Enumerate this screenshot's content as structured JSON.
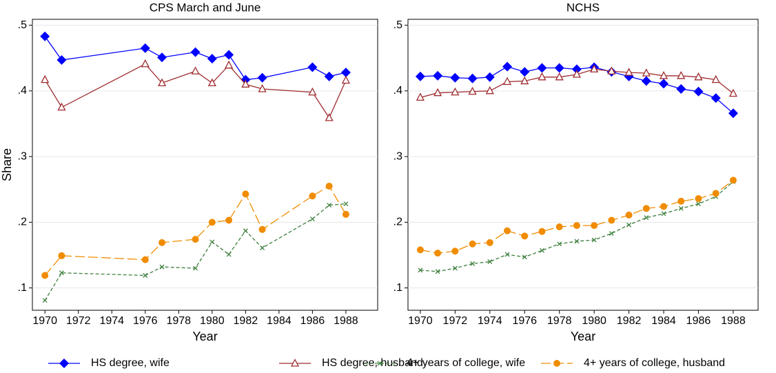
{
  "chart_data": [
    {
      "type": "line",
      "title": "CPS March and June",
      "xlabel": "Year",
      "ylabel": "Share",
      "x": [
        1970,
        1971,
        1976,
        1977,
        1979,
        1980,
        1981,
        1982,
        1983,
        1986,
        1987,
        1988
      ],
      "xlim": [
        1969.25,
        1989.9
      ],
      "ylim": [
        0.066,
        0.509
      ],
      "xticks": [
        1970,
        1972,
        1974,
        1976,
        1978,
        1980,
        1982,
        1984,
        1986,
        1988
      ],
      "yticks": [
        {
          "value": 0.1,
          "label": ".1"
        },
        {
          "value": 0.2,
          "label": ".2"
        },
        {
          "value": 0.3,
          "label": ".3"
        },
        {
          "value": 0.4,
          "label": ".4"
        },
        {
          "value": 0.5,
          "label": ".5"
        }
      ],
      "grid": true,
      "series": [
        {
          "name": "HS degree, wife",
          "color": "#0000ff",
          "marker": "diamond",
          "dash": "solid",
          "values": [
            0.483,
            0.447,
            0.465,
            0.451,
            0.459,
            0.449,
            0.455,
            0.417,
            0.42,
            0.436,
            0.422,
            0.428
          ]
        },
        {
          "name": "HS degree, husband",
          "color": "#9e2b2f",
          "marker": "triangle-open",
          "dash": "solid",
          "values": [
            0.417,
            0.375,
            0.441,
            0.412,
            0.43,
            0.412,
            0.439,
            0.41,
            0.403,
            0.398,
            0.359,
            0.416
          ]
        },
        {
          "name": "4+ years of college, wife",
          "color": "#3d7f3d",
          "marker": "x",
          "dash": "short",
          "values": [
            0.081,
            0.123,
            0.119,
            0.132,
            0.13,
            0.17,
            0.151,
            0.187,
            0.161,
            0.205,
            0.226,
            0.228
          ]
        },
        {
          "name": "4+ years of college, husband",
          "color": "#f08c00",
          "marker": "circle",
          "dash": "long",
          "values": [
            0.119,
            0.149,
            0.143,
            0.169,
            0.174,
            0.2,
            0.203,
            0.243,
            0.189,
            0.24,
            0.255,
            0.212
          ]
        }
      ]
    },
    {
      "type": "line",
      "title": "NCHS",
      "xlabel": "Year",
      "x": [
        1970,
        1971,
        1972,
        1973,
        1974,
        1975,
        1976,
        1977,
        1978,
        1979,
        1980,
        1981,
        1982,
        1983,
        1984,
        1985,
        1986,
        1987,
        1988
      ],
      "xlim": [
        1969.29,
        1989.43
      ],
      "ylim": [
        0.066,
        0.509
      ],
      "xticks": [
        1970,
        1972,
        1974,
        1976,
        1978,
        1980,
        1982,
        1984,
        1986,
        1988
      ],
      "yticks": [
        {
          "value": 0.1,
          "label": ".1"
        },
        {
          "value": 0.2,
          "label": ".2"
        },
        {
          "value": 0.3,
          "label": ".3"
        },
        {
          "value": 0.4,
          "label": ".4"
        },
        {
          "value": 0.5,
          "label": ".5"
        }
      ],
      "grid": true,
      "series": [
        {
          "name": "HS degree, wife",
          "color": "#0000ff",
          "marker": "diamond",
          "dash": "solid",
          "values": [
            0.422,
            0.423,
            0.42,
            0.419,
            0.421,
            0.437,
            0.429,
            0.435,
            0.435,
            0.433,
            0.436,
            0.429,
            0.422,
            0.415,
            0.411,
            0.403,
            0.399,
            0.389,
            0.366
          ]
        },
        {
          "name": "HS degree, husband",
          "color": "#9e2b2f",
          "marker": "triangle-open",
          "dash": "solid",
          "values": [
            0.39,
            0.397,
            0.398,
            0.399,
            0.4,
            0.414,
            0.415,
            0.421,
            0.421,
            0.425,
            0.433,
            0.43,
            0.428,
            0.427,
            0.423,
            0.423,
            0.421,
            0.417,
            0.396
          ]
        },
        {
          "name": "4+ years of college, wife",
          "color": "#3d7f3d",
          "marker": "x",
          "dash": "short",
          "values": [
            0.127,
            0.125,
            0.13,
            0.137,
            0.14,
            0.151,
            0.147,
            0.157,
            0.167,
            0.171,
            0.173,
            0.183,
            0.196,
            0.207,
            0.213,
            0.221,
            0.228,
            0.239,
            0.262
          ]
        },
        {
          "name": "4+ years of college, husband",
          "color": "#f08c00",
          "marker": "circle",
          "dash": "long",
          "values": [
            0.158,
            0.153,
            0.156,
            0.167,
            0.169,
            0.187,
            0.179,
            0.186,
            0.193,
            0.195,
            0.195,
            0.203,
            0.211,
            0.221,
            0.224,
            0.232,
            0.236,
            0.244,
            0.264
          ]
        }
      ]
    }
  ]
}
